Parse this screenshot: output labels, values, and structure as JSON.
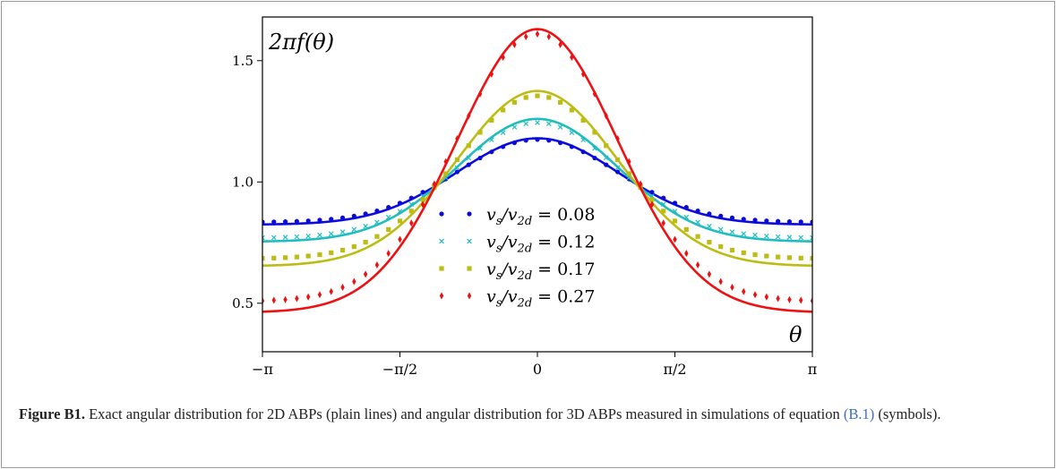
{
  "chart_data": {
    "type": "line",
    "ylabel": "2πf(θ)",
    "xlabel": "θ",
    "xlim": [
      -3.14159,
      3.14159
    ],
    "ylim": [
      0.3,
      1.68
    ],
    "xticks": [
      {
        "value": -3.14159,
        "label": "−π"
      },
      {
        "value": -1.5708,
        "label": "−π/2"
      },
      {
        "value": 0,
        "label": "0"
      },
      {
        "value": 1.5708,
        "label": "π/2"
      },
      {
        "value": 3.14159,
        "label": "π"
      }
    ],
    "yticks": [
      {
        "value": 0.5,
        "label": "0.5"
      },
      {
        "value": 1.0,
        "label": "1.0"
      },
      {
        "value": 1.5,
        "label": "1.5"
      }
    ],
    "legend_position": "center",
    "series": [
      {
        "name": "vs/v2d = 0.08",
        "legend_main": "v",
        "legend_sub1": "s",
        "legend_mid": "/v",
        "legend_sub2": "2d",
        "legend_value": " = 0.08",
        "color": "#0a0adc",
        "marker": "circle",
        "line_peak": 1.18,
        "line_trough": 0.825,
        "marker_peak": 1.175,
        "marker_trough": 0.835
      },
      {
        "name": "vs/v2d = 0.12",
        "legend_main": "v",
        "legend_sub1": "s",
        "legend_mid": "/v",
        "legend_sub2": "2d",
        "legend_value": " = 0.12",
        "color": "#1fbcc0",
        "marker": "x",
        "line_peak": 1.26,
        "line_trough": 0.755,
        "marker_peak": 1.245,
        "marker_trough": 0.77
      },
      {
        "name": "vs/v2d = 0.17",
        "legend_main": "v",
        "legend_sub1": "s",
        "legend_mid": "/v",
        "legend_sub2": "2d",
        "legend_value": " = 0.17",
        "color": "#bcbc14",
        "marker": "square",
        "line_peak": 1.375,
        "line_trough": 0.655,
        "marker_peak": 1.355,
        "marker_trough": 0.685
      },
      {
        "name": "vs/v2d = 0.27",
        "legend_main": "v",
        "legend_sub1": "s",
        "legend_mid": "/v",
        "legend_sub2": "2d",
        "legend_value": " = 0.27",
        "color": "#ee1111",
        "marker": "diamond",
        "line_peak": 1.63,
        "line_trough": 0.465,
        "marker_peak": 1.61,
        "marker_trough": 0.51
      }
    ]
  },
  "caption": {
    "label": "Figure B1.",
    "text_before": " Exact angular distribution for 2D ABPs (plain lines) and angular distribution for 3D ABPs measured in simulations of equation ",
    "ref": "(B.1)",
    "text_after": " (symbols)."
  }
}
